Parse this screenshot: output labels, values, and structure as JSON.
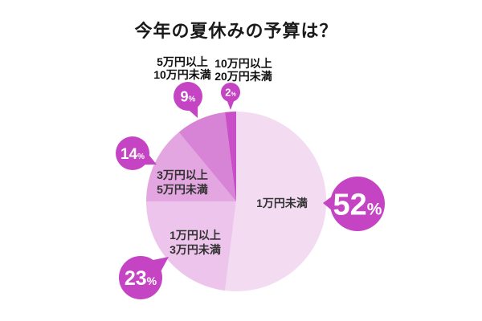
{
  "chart_data": {
    "type": "pie",
    "title": "今年の夏休みの予算は？",
    "unit": "%",
    "start_angle_deg": 0,
    "direction": "clockwise",
    "legend": "none",
    "background": "#ffffff",
    "bubble_color": "#c444c4",
    "bubble_text_color": "#ffffff",
    "inner_label_color": "#333333",
    "outer_label_color": "#111111",
    "slices": [
      {
        "label": "1万円未満",
        "label_lines": [
          "1万円未満"
        ],
        "value": 52,
        "color": "#f3dcf2"
      },
      {
        "label": "1万円以上3万円未満",
        "label_lines": [
          "1万円以上",
          "3万円未満"
        ],
        "value": 23,
        "color": "#edc4eb"
      },
      {
        "label": "3万円以上5万円未満",
        "label_lines": [
          "3万円以上",
          "5万円未満"
        ],
        "value": 14,
        "color": "#e3a6e0"
      },
      {
        "label": "5万円以上10万円未満",
        "label_lines": [
          "5万円以上",
          "10万円未満"
        ],
        "value": 9,
        "color": "#d884d6"
      },
      {
        "label": "10万円以上20万円未満",
        "label_lines": [
          "10万円以上",
          "20万円未満"
        ],
        "value": 2,
        "color": "#c94fc9"
      }
    ]
  }
}
